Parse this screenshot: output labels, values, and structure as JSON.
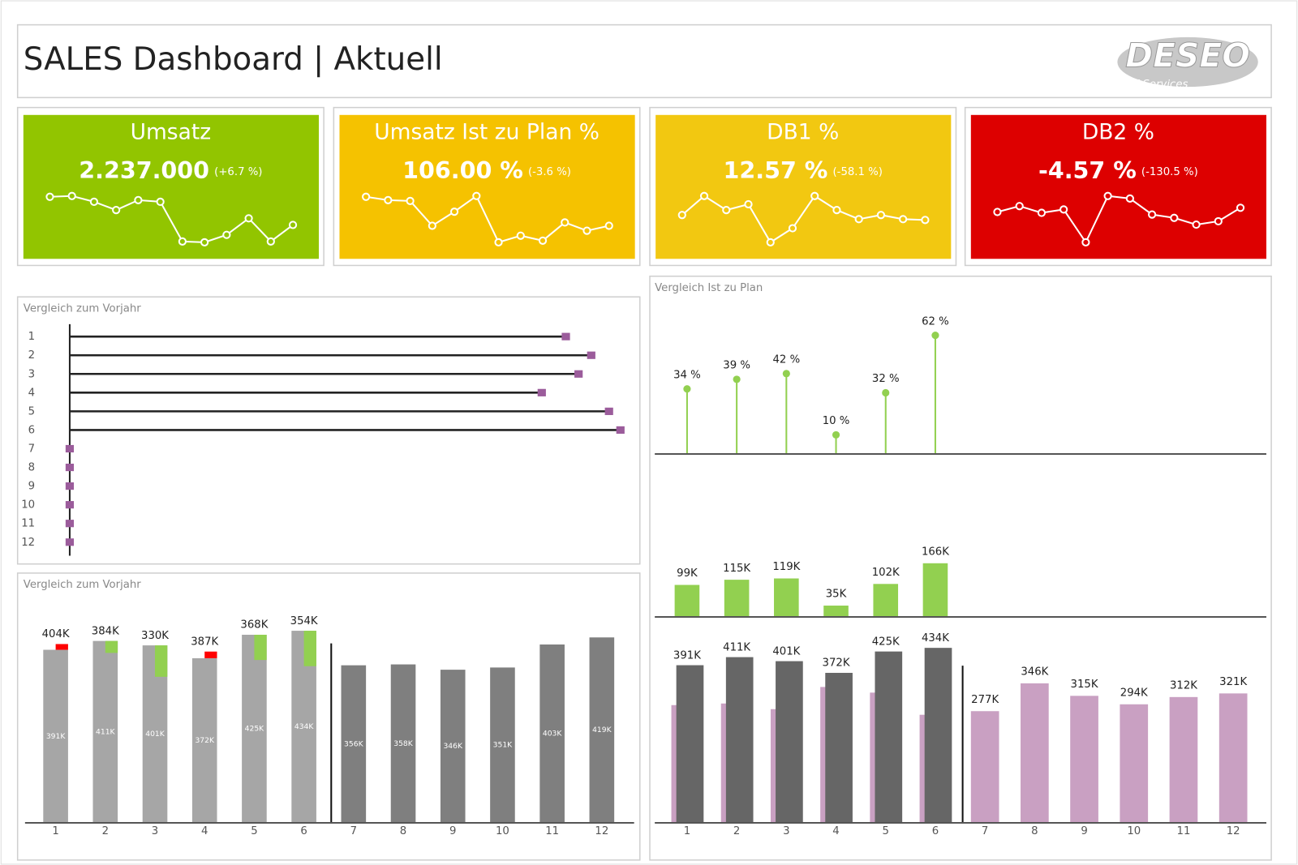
{
  "header": {
    "title": "SALES Dashboard | Aktuell",
    "logo": "DESEO",
    "logo_subtitle": "IT Services"
  },
  "kpis": [
    {
      "title": "Umsatz",
      "value": "2.237.000",
      "change": "(+6.7 %)",
      "color": "#92c500",
      "sparkline": [
        62,
        63,
        56,
        46,
        58,
        56,
        8,
        7,
        16,
        36,
        8,
        28
      ]
    },
    {
      "title": "Umsatz Ist zu Plan %",
      "value": "106.00 %",
      "change": "(-3.6 %)",
      "color": "#f5c200",
      "sparkline": [
        62,
        58,
        57,
        27,
        44,
        63,
        7,
        15,
        9,
        31,
        21,
        27
      ]
    },
    {
      "title": "DB1 %",
      "value": "12.57 %",
      "change": "(-58.1 %)",
      "color": "#f2c811",
      "sparkline": [
        40,
        63,
        46,
        53,
        7,
        24,
        63,
        46,
        35,
        40,
        35,
        34
      ]
    },
    {
      "title": "DB2 %",
      "value": "-4.57 %",
      "change": "(-130.5 %)",
      "color": "#dd0000",
      "sparkline": [
        43,
        50,
        42,
        46,
        7,
        62,
        59,
        40,
        36,
        28,
        32,
        48
      ]
    }
  ],
  "chart_data": [
    {
      "type": "hbar",
      "title": "Vergleich zum Vorjahr",
      "categories": [
        "1",
        "2",
        "3",
        "4",
        "5",
        "6",
        "7",
        "8",
        "9",
        "10",
        "11",
        "12"
      ],
      "values": [
        391000,
        411000,
        401000,
        372000,
        425000,
        434000,
        0,
        0,
        0,
        0,
        0,
        0
      ],
      "color": "#9b5c9b",
      "xlim": [
        0,
        450000
      ]
    },
    {
      "type": "variance",
      "title": "Vergleich zum Vorjahr",
      "categories": [
        "1",
        "2",
        "3",
        "4",
        "5",
        "6",
        "7",
        "8",
        "9",
        "10",
        "11",
        "12"
      ],
      "ylim": [
        0,
        470000
      ],
      "positive_color": "#92d050",
      "negative_color": "#ff0000",
      "series": [
        {
          "color": "#a6a6a6",
          "values": [
            391000,
            411000,
            401000,
            372000,
            425000,
            434000,
            null,
            null,
            null,
            null,
            null,
            null
          ],
          "value_labels": [
            "391K",
            "411K",
            "401K",
            "372K",
            "425K",
            "434K",
            null,
            null,
            null,
            null,
            null,
            null
          ]
        },
        {
          "values": [
            404000,
            384000,
            330000,
            387000,
            368000,
            354000,
            null,
            null,
            null,
            null,
            null,
            null
          ],
          "value_labels": [
            "404K",
            "384K",
            "330K",
            "387K",
            "368K",
            "354K",
            null,
            null,
            null,
            null,
            null,
            null
          ]
        },
        {
          "color": "#7f7f7f",
          "values": [
            null,
            null,
            null,
            null,
            null,
            null,
            356000,
            358000,
            346000,
            351000,
            403000,
            419000
          ],
          "value_labels": [
            null,
            null,
            null,
            null,
            null,
            null,
            "356K",
            "358K",
            "346K",
            "351K",
            "403K",
            "419K"
          ]
        }
      ]
    },
    {
      "type": "plan",
      "title": "Vergleich Ist zu Plan",
      "categories": [
        "1",
        "2",
        "3",
        "4",
        "5",
        "6",
        "7",
        "8",
        "9",
        "10",
        "11",
        "12"
      ],
      "pct": {
        "color": "#92d050",
        "ylim": [
          0,
          73
        ],
        "values": [
          34,
          39,
          42,
          10,
          32,
          62,
          null,
          null,
          null,
          null,
          null,
          null
        ],
        "value_labels": [
          "34 %",
          "39 %",
          "42 %",
          "10 %",
          "32 %",
          "62 %",
          null,
          null,
          null,
          null,
          null,
          null
        ]
      },
      "delta": {
        "color": "#92d050",
        "ylim": [
          0,
          220000
        ],
        "values": [
          99000,
          115000,
          119000,
          35000,
          102000,
          166000,
          null,
          null,
          null,
          null,
          null,
          null
        ],
        "value_labels": [
          "99K",
          "115K",
          "119K",
          "35K",
          "102K",
          "166K",
          null,
          null,
          null,
          null,
          null,
          null
        ]
      },
      "ylim": [
        0,
        480000
      ],
      "actual": {
        "color": "#666666",
        "values": [
          391000,
          411000,
          401000,
          372000,
          425000,
          434000,
          null,
          null,
          null,
          null,
          null,
          null
        ],
        "value_labels": [
          "391K",
          "411K",
          "401K",
          "372K",
          "425K",
          "434K",
          null,
          null,
          null,
          null,
          null,
          null
        ]
      },
      "plan": {
        "color": "#c9a0c2",
        "values": [
          292000,
          296000,
          282000,
          337000,
          323000,
          268000,
          277000,
          346000,
          315000,
          294000,
          312000,
          321000
        ],
        "value_labels": [
          null,
          null,
          null,
          null,
          null,
          null,
          "277K",
          "346K",
          "315K",
          "294K",
          "312K",
          "321K"
        ]
      }
    }
  ]
}
